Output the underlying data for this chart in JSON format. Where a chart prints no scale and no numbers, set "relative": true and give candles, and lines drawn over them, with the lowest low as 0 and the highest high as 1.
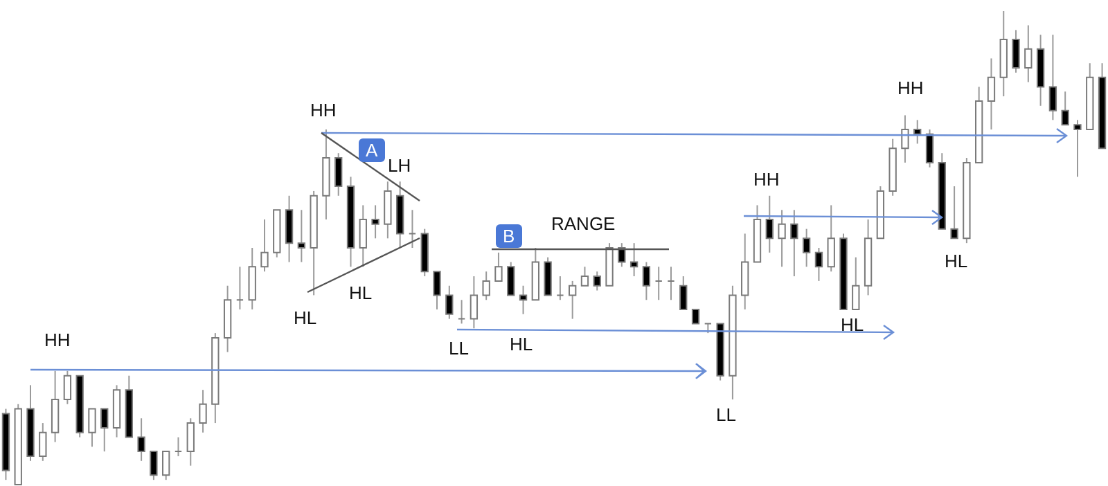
{
  "chart_data": {
    "type": "candlestick",
    "relative": true,
    "tick_labels": false,
    "categories": [
      null,
      null,
      null,
      null,
      null,
      null,
      null,
      null,
      null,
      null,
      null,
      null,
      null,
      null,
      null,
      null,
      null,
      null,
      null,
      null,
      null,
      null,
      null,
      null,
      null,
      null,
      null,
      null,
      null,
      null,
      null,
      null,
      null,
      null,
      null,
      null,
      null,
      null,
      null,
      null,
      null,
      null,
      null,
      null,
      null,
      null,
      null,
      null,
      null,
      null,
      null,
      null,
      null,
      null,
      null,
      null,
      null,
      null,
      null,
      null,
      null,
      null,
      null,
      null,
      null,
      null,
      null,
      null,
      null,
      null,
      null,
      null,
      null,
      null,
      null,
      null,
      null,
      null,
      null,
      null,
      null,
      null,
      null,
      null,
      null,
      null,
      null,
      null,
      null,
      null
    ],
    "ohlc": [
      [
        0.15,
        0.16,
        0.01,
        0.03
      ],
      [
        0,
        0.17,
        0,
        0.16
      ],
      [
        0.16,
        0.21,
        0.05,
        0.06
      ],
      [
        0.06,
        0.13,
        0.05,
        0.11
      ],
      [
        0.11,
        0.24,
        0.09,
        0.18
      ],
      [
        0.18,
        0.24,
        0.17,
        0.23
      ],
      [
        0.23,
        0.23,
        0.1,
        0.11
      ],
      [
        0.11,
        0.16,
        0.08,
        0.16
      ],
      [
        0.16,
        0.16,
        0.07,
        0.12
      ],
      [
        0.12,
        0.21,
        0.1,
        0.2
      ],
      [
        0.2,
        0.23,
        0.1,
        0.1
      ],
      [
        0.1,
        0.14,
        0.05,
        0.07
      ],
      [
        0.07,
        0.07,
        0.01,
        0.02
      ],
      [
        0.02,
        0.07,
        0.01,
        0.07
      ],
      [
        0.07,
        0.1,
        0.06,
        0.07
      ],
      [
        0.07,
        0.14,
        0.04,
        0.13
      ],
      [
        0.13,
        0.2,
        0.11,
        0.17
      ],
      [
        0.17,
        0.32,
        0.13,
        0.31
      ],
      [
        0.31,
        0.42,
        0.28,
        0.39
      ],
      [
        0.39,
        0.46,
        0.37,
        0.39
      ],
      [
        0.39,
        0.5,
        0.37,
        0.46
      ],
      [
        0.46,
        0.56,
        0.45,
        0.49
      ],
      [
        0.49,
        0.58,
        0.48,
        0.58
      ],
      [
        0.58,
        0.61,
        0.47,
        0.51
      ],
      [
        0.51,
        0.58,
        0.47,
        0.5
      ],
      [
        0.5,
        0.62,
        0.4,
        0.61
      ],
      [
        0.61,
        0.75,
        0.56,
        0.69
      ],
      [
        0.69,
        0.7,
        0.61,
        0.63
      ],
      [
        0.63,
        0.65,
        0.46,
        0.5
      ],
      [
        0.5,
        0.59,
        0.46,
        0.56
      ],
      [
        0.56,
        0.59,
        0.52,
        0.55
      ],
      [
        0.55,
        0.64,
        0.52,
        0.62
      ],
      [
        0.61,
        0.64,
        0.5,
        0.53
      ],
      [
        0.53,
        0.58,
        0.5,
        0.53
      ],
      [
        0.53,
        0.54,
        0.44,
        0.45
      ],
      [
        0.45,
        0.45,
        0.37,
        0.4
      ],
      [
        0.4,
        0.42,
        0.35,
        0.36
      ],
      [
        0.35,
        0.39,
        0.34,
        0.35
      ],
      [
        0.35,
        0.44,
        0.33,
        0.4
      ],
      [
        0.4,
        0.45,
        0.39,
        0.43
      ],
      [
        0.43,
        0.49,
        0.43,
        0.46
      ],
      [
        0.46,
        0.47,
        0.4,
        0.4
      ],
      [
        0.4,
        0.42,
        0.36,
        0.39
      ],
      [
        0.39,
        0.5,
        0.39,
        0.47
      ],
      [
        0.47,
        0.48,
        0.4,
        0.4
      ],
      [
        0.4,
        0.44,
        0.39,
        0.4
      ],
      [
        0.4,
        0.43,
        0.35,
        0.42
      ],
      [
        0.42,
        0.46,
        0.42,
        0.44
      ],
      [
        0.44,
        0.45,
        0.41,
        0.42
      ],
      [
        0.42,
        0.51,
        0.42,
        0.5
      ],
      [
        0.5,
        0.51,
        0.46,
        0.47
      ],
      [
        0.47,
        0.51,
        0.44,
        0.46
      ],
      [
        0.46,
        0.47,
        0.39,
        0.42
      ],
      [
        0.43,
        0.46,
        0.39,
        0.43
      ],
      [
        0.43,
        0.46,
        0.39,
        0.43
      ],
      [
        0.42,
        0.44,
        0.37,
        0.37
      ],
      [
        0.37,
        0.37,
        0.34,
        0.34
      ],
      [
        0.34,
        0.34,
        0.32,
        0.34
      ],
      [
        0.34,
        0.34,
        0.22,
        0.23
      ],
      [
        0.23,
        0.42,
        0.18,
        0.4
      ],
      [
        0.4,
        0.53,
        0.37,
        0.47
      ],
      [
        0.47,
        0.59,
        0.47,
        0.56
      ],
      [
        0.56,
        0.61,
        0.49,
        0.52
      ],
      [
        0.52,
        0.58,
        0.46,
        0.55
      ],
      [
        0.55,
        0.58,
        0.44,
        0.52
      ],
      [
        0.52,
        0.54,
        0.46,
        0.49
      ],
      [
        0.49,
        0.5,
        0.43,
        0.46
      ],
      [
        0.46,
        0.59,
        0.45,
        0.52
      ],
      [
        0.52,
        0.53,
        0.37,
        0.37
      ],
      [
        0.37,
        0.48,
        0.37,
        0.42
      ],
      [
        0.42,
        0.56,
        0.4,
        0.52
      ],
      [
        0.52,
        0.63,
        0.52,
        0.62
      ],
      [
        0.62,
        0.73,
        0.61,
        0.71
      ],
      [
        0.71,
        0.78,
        0.68,
        0.75
      ],
      [
        0.75,
        0.77,
        0.72,
        0.74
      ],
      [
        0.74,
        0.75,
        0.67,
        0.68
      ],
      [
        0.68,
        0.7,
        0.54,
        0.54
      ],
      [
        0.54,
        0.63,
        0.52,
        0.52
      ],
      [
        0.52,
        0.69,
        0.51,
        0.68
      ],
      [
        0.68,
        0.84,
        0.68,
        0.81
      ],
      [
        0.81,
        0.9,
        0.75,
        0.86
      ],
      [
        0.86,
        1,
        0.82,
        0.94
      ],
      [
        0.94,
        0.96,
        0.87,
        0.88
      ],
      [
        0.88,
        0.97,
        0.85,
        0.92
      ],
      [
        0.92,
        0.95,
        0.8,
        0.84
      ],
      [
        0.84,
        0.95,
        0.77,
        0.79
      ],
      [
        0.79,
        0.83,
        0.76,
        0.76
      ],
      [
        0.76,
        0.77,
        0.65,
        0.75
      ],
      [
        0.75,
        0.89,
        0.75,
        0.86
      ],
      [
        0.86,
        0.89,
        0.71,
        0.71
      ]
    ],
    "annotations": [
      "HH",
      "HH",
      "A",
      "LH",
      "HL",
      "HL",
      "B",
      "RANGE",
      "HL",
      "LL",
      "LL",
      "HH",
      "HL",
      "HH",
      "HL"
    ]
  }
}
